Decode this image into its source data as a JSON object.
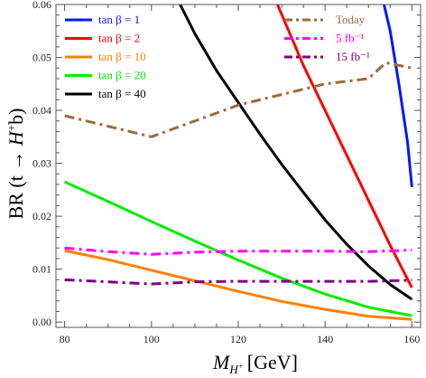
{
  "chart_data": {
    "type": "line",
    "xlabel": "M_{H+} [GeV]",
    "ylabel": "BR (t → H⁺b)",
    "xlim": [
      78,
      162
    ],
    "ylim": [
      -0.001,
      0.06
    ],
    "xticks": [
      80,
      100,
      120,
      140,
      160
    ],
    "yticks": [
      0.0,
      0.01,
      0.02,
      0.03,
      0.04,
      0.05,
      0.06
    ],
    "ytick_labels": [
      "0.00",
      "0.01",
      "0.02",
      "0.03",
      "0.04",
      "0.05",
      "0.06"
    ],
    "legend_left": [
      {
        "label": "tan β = 1",
        "color": "#0018ff"
      },
      {
        "label": "tan β = 2",
        "color": "#ff0000"
      },
      {
        "label": "tan β = 10",
        "color": "#ff8000"
      },
      {
        "label": "tan β = 20",
        "color": "#00ee00"
      },
      {
        "label": "tan β = 40",
        "color": "#000000"
      }
    ],
    "legend_right": [
      {
        "label": "Today",
        "color": "#9c6b3c"
      },
      {
        "label": "5 fb⁻¹",
        "color": "#ff00ff"
      },
      {
        "label": "15 fb⁻¹",
        "color": "#800080"
      }
    ],
    "series": [
      {
        "name": "tan β = 1",
        "color": "#0018ff",
        "style": "solid",
        "x": [
          153,
          155,
          157,
          159,
          160
        ],
        "y": [
          0.062,
          0.055,
          0.045,
          0.034,
          0.0255
        ]
      },
      {
        "name": "tan β = 2",
        "color": "#ff0000",
        "style": "solid",
        "x": [
          128,
          135,
          140,
          145,
          150,
          155,
          160
        ],
        "y": [
          0.062,
          0.0485,
          0.04,
          0.0315,
          0.023,
          0.0145,
          0.0065
        ]
      },
      {
        "name": "tan β = 10",
        "color": "#ff8000",
        "style": "solid",
        "x": [
          80,
          90,
          100,
          110,
          120,
          130,
          140,
          150,
          160
        ],
        "y": [
          0.0135,
          0.0118,
          0.0098,
          0.0078,
          0.0058,
          0.0039,
          0.0024,
          0.0011,
          0.0005
        ]
      },
      {
        "name": "tan β = 20",
        "color": "#00ee00",
        "style": "solid",
        "x": [
          80,
          90,
          100,
          110,
          120,
          130,
          140,
          150,
          160
        ],
        "y": [
          0.0265,
          0.0228,
          0.019,
          0.0153,
          0.0117,
          0.0083,
          0.0053,
          0.0028,
          0.0012
        ]
      },
      {
        "name": "tan β = 40",
        "color": "#000000",
        "style": "solid",
        "x": [
          106,
          110,
          115,
          120,
          125,
          130,
          135,
          140,
          145,
          150,
          155,
          160
        ],
        "y": [
          0.061,
          0.0545,
          0.0475,
          0.0415,
          0.0355,
          0.0298,
          0.0245,
          0.0193,
          0.0147,
          0.0106,
          0.0071,
          0.0043
        ]
      },
      {
        "name": "Today",
        "color": "#9c6b3c",
        "style": "dashdot",
        "x": [
          80,
          90,
          100,
          110,
          120,
          130,
          140,
          150,
          154,
          160
        ],
        "y": [
          0.039,
          0.037,
          0.035,
          0.038,
          0.041,
          0.043,
          0.045,
          0.046,
          0.049,
          0.048
        ]
      },
      {
        "name": "5 fb⁻¹",
        "color": "#ff00ff",
        "style": "dashdot",
        "x": [
          80,
          90,
          100,
          110,
          120,
          130,
          140,
          150,
          160
        ],
        "y": [
          0.014,
          0.0133,
          0.0128,
          0.0132,
          0.0134,
          0.0134,
          0.0134,
          0.0133,
          0.0136
        ]
      },
      {
        "name": "15 fb⁻¹",
        "color": "#800080",
        "style": "dashdot",
        "x": [
          80,
          90,
          100,
          110,
          120,
          130,
          140,
          150,
          160
        ],
        "y": [
          0.008,
          0.0076,
          0.0072,
          0.0076,
          0.0077,
          0.0077,
          0.0077,
          0.0077,
          0.0079
        ]
      }
    ]
  }
}
